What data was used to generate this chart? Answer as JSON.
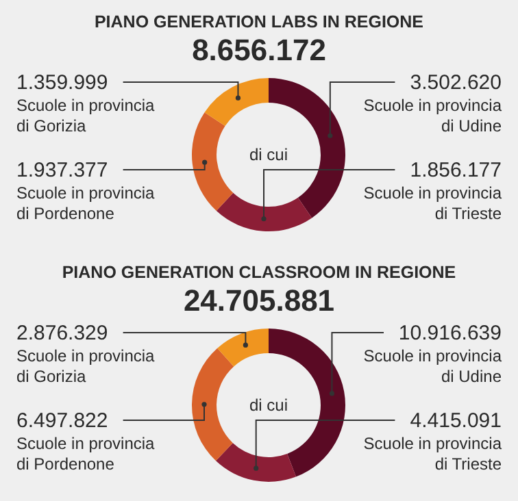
{
  "chart_data": [
    {
      "type": "donut",
      "title": "PIANO GENERATION LABS IN REGIONE",
      "subtitle": "8.656.172",
      "categories": [
        "Scuole in provincia di Udine",
        "Scuole in provincia di Trieste",
        "Scuole in provincia di Pordenone",
        "Scuole in provincia di Gorizia"
      ],
      "values": [
        3502620,
        1856177,
        1937377,
        1359999
      ],
      "value_labels": [
        "3.502.620",
        "1.856.177",
        "1.937.377",
        "1.359.999"
      ],
      "colors": [
        "#5a0a24",
        "#8c1e36",
        "#d9622b",
        "#f0951f"
      ],
      "annotations": [
        "di cui"
      ]
    },
    {
      "type": "donut",
      "title": "PIANO GENERATION CLASSROOM IN REGIONE",
      "subtitle": "24.705.881",
      "categories": [
        "Scuole in provincia di Udine",
        "Scuole in provincia di Trieste",
        "Scuole in provincia di Pordenone",
        "Scuole in provincia di Gorizia"
      ],
      "values": [
        10916639,
        4415091,
        6497822,
        2876329
      ],
      "value_labels": [
        "10.916.639",
        "4.415.091",
        "6.497.822",
        "2.876.329"
      ],
      "colors": [
        "#5a0a24",
        "#8c1e36",
        "#d9622b",
        "#f0951f"
      ],
      "annotations": [
        "di cui"
      ]
    }
  ]
}
